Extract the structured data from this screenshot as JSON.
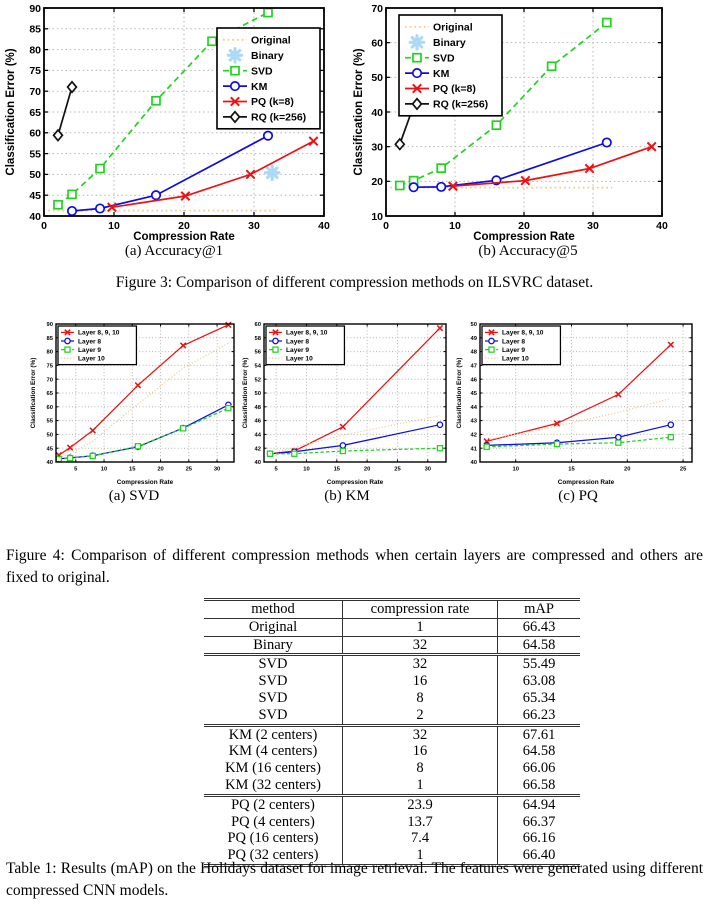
{
  "page": {
    "figure3_caption": "Figure 3: Comparison of different compression methods on ILSVRC dataset.",
    "figure4_caption": "Figure 4: Comparison of different compression methods when certain layers are compressed and others are fixed to original.",
    "table1_caption": "Table 1: Results (mAP) on the Holidays dataset for image retrieval. The features were generated using different compressed CNN models."
  },
  "chart_data": [
    {
      "id": "accuracy-at-1",
      "type": "line",
      "caption": "(a) Accuracy@1",
      "xlabel": "Compression Rate",
      "ylabel": "Classification Error (%)",
      "xlim": [
        0,
        40
      ],
      "ylim": [
        40,
        90
      ],
      "xticks": [
        0,
        10,
        20,
        30,
        40
      ],
      "yticks": [
        40,
        45,
        50,
        55,
        60,
        65,
        70,
        75,
        80,
        85,
        90
      ],
      "grid": true,
      "legend_position": "top-right",
      "series": [
        {
          "name": "Original",
          "color": "#f6c98c",
          "line": "dotted",
          "marker": "none",
          "x": [
            0.6,
            33.2
          ],
          "y": [
            41.3,
            41.3
          ]
        },
        {
          "name": "Binary",
          "color": "#a8d7f4",
          "line": "none",
          "marker": "asterisk",
          "x": [
            32.6
          ],
          "y": [
            50.4
          ]
        },
        {
          "name": "SVD",
          "color": "#1ed41e",
          "line": "dashed",
          "marker": "square",
          "x": [
            2,
            4,
            8,
            16,
            24,
            32
          ],
          "y": [
            42.7,
            45.2,
            51.4,
            67.7,
            82.0,
            88.9
          ]
        },
        {
          "name": "KM",
          "color": "#0d0de0",
          "line": "solid",
          "marker": "circle",
          "x": [
            4,
            8,
            16,
            32
          ],
          "y": [
            41.2,
            41.8,
            45.0,
            59.3
          ]
        },
        {
          "name": "PQ (k=8)",
          "color": "#ee1111",
          "line": "solid",
          "marker": "x",
          "x": [
            9.7,
            20.2,
            29.5,
            38.5
          ],
          "y": [
            42.1,
            44.8,
            50.0,
            58.0
          ]
        },
        {
          "name": "RQ (k=256)",
          "color": "#111111",
          "line": "solid",
          "marker": "diamond",
          "x": [
            2,
            4
          ],
          "y": [
            59.4,
            71.0
          ]
        }
      ]
    },
    {
      "id": "accuracy-at-5",
      "type": "line",
      "caption": "(b) Accuracy@5",
      "xlabel": "Compression Rate",
      "ylabel": "Classification Error (%)",
      "xlim": [
        0,
        40
      ],
      "ylim": [
        10,
        70
      ],
      "xticks": [
        0,
        10,
        20,
        30,
        40
      ],
      "yticks": [
        10,
        20,
        30,
        40,
        50,
        60,
        70
      ],
      "grid": true,
      "legend_position": "top-left",
      "series": [
        {
          "name": "Original",
          "color": "#f6c98c",
          "line": "dotted",
          "marker": "none",
          "x": [
            0.6,
            32.8
          ],
          "y": [
            18.2,
            18.2
          ]
        },
        {
          "name": "Binary",
          "color": "#a8d7f4",
          "line": "none",
          "marker": "asterisk",
          "x": [],
          "y": []
        },
        {
          "name": "SVD",
          "color": "#1ed41e",
          "line": "dashed",
          "marker": "square",
          "x": [
            2,
            4,
            8,
            16,
            24,
            32
          ],
          "y": [
            18.8,
            20.2,
            23.8,
            36.2,
            53.2,
            65.8
          ]
        },
        {
          "name": "KM",
          "color": "#0d0de0",
          "line": "solid",
          "marker": "circle",
          "x": [
            4,
            8,
            16,
            32
          ],
          "y": [
            18.3,
            18.4,
            20.3,
            31.2
          ]
        },
        {
          "name": "PQ (k=8)",
          "color": "#ee1111",
          "line": "solid",
          "marker": "x",
          "x": [
            9.7,
            20.2,
            29.5,
            38.5
          ],
          "y": [
            18.6,
            20.2,
            23.7,
            30.0
          ]
        },
        {
          "name": "RQ (k=256)",
          "color": "#111111",
          "line": "solid",
          "marker": "diamond",
          "x": [
            2,
            4
          ],
          "y": [
            30.7,
            41.8
          ]
        }
      ]
    },
    {
      "id": "layers-svd",
      "type": "line",
      "caption": "(a) SVD",
      "xlabel": "Compression Rate",
      "ylabel": "Classification Error (%)",
      "xlim": [
        1.5,
        33
      ],
      "ylim": [
        40,
        90
      ],
      "xticks": [
        5,
        10,
        15,
        20,
        25,
        30
      ],
      "yticks": [
        40,
        45,
        50,
        55,
        60,
        65,
        70,
        75,
        80,
        85,
        90
      ],
      "grid": true,
      "legend_position": "top-left",
      "series": [
        {
          "name": "Layer 8, 9, 10",
          "color": "#ee1111",
          "line": "solid",
          "marker": "x",
          "x": [
            2,
            4,
            8,
            16,
            24,
            32
          ],
          "y": [
            42.5,
            45.2,
            51.4,
            67.8,
            82.2,
            89.7
          ]
        },
        {
          "name": "Layer 8",
          "color": "#0d0de0",
          "line": "solid",
          "marker": "circle",
          "x": [
            2,
            4,
            8,
            16,
            24,
            32
          ],
          "y": [
            41.2,
            41.5,
            42.3,
            45.5,
            52.3,
            60.7
          ]
        },
        {
          "name": "Layer 9",
          "color": "#1ed41e",
          "line": "dashed",
          "marker": "square",
          "x": [
            2,
            4,
            8,
            16,
            24,
            32
          ],
          "y": [
            41.1,
            41.4,
            42.2,
            45.7,
            52.2,
            59.5
          ]
        },
        {
          "name": "Layer 10",
          "color": "#f6c98c",
          "line": "dotted",
          "marker": "none",
          "x": [
            2,
            4,
            8,
            16,
            24,
            32
          ],
          "y": [
            41.5,
            43.0,
            47.5,
            61.0,
            74.0,
            83.0
          ]
        }
      ]
    },
    {
      "id": "layers-km",
      "type": "line",
      "caption": "(b) KM",
      "xlabel": "Compression Rate",
      "ylabel": "Classification Error (%)",
      "xlim": [
        3,
        33
      ],
      "ylim": [
        40,
        60
      ],
      "xticks": [
        5,
        10,
        15,
        20,
        25,
        30
      ],
      "yticks": [
        40,
        42,
        44,
        46,
        48,
        50,
        52,
        54,
        56,
        58,
        60
      ],
      "grid": true,
      "legend_position": "top-left",
      "series": [
        {
          "name": "Layer 8, 9, 10",
          "color": "#ee1111",
          "line": "solid",
          "marker": "x",
          "x": [
            4,
            8,
            16,
            32
          ],
          "y": [
            41.2,
            41.6,
            45.1,
            59.4
          ]
        },
        {
          "name": "Layer 8",
          "color": "#0d0de0",
          "line": "solid",
          "marker": "circle",
          "x": [
            4,
            8,
            16,
            32
          ],
          "y": [
            41.2,
            41.5,
            42.4,
            45.4
          ]
        },
        {
          "name": "Layer 9",
          "color": "#1ed41e",
          "line": "dashed",
          "marker": "square",
          "x": [
            4,
            8,
            16,
            32
          ],
          "y": [
            41.2,
            41.2,
            41.6,
            42.0
          ]
        },
        {
          "name": "Layer 10",
          "color": "#f6c98c",
          "line": "dotted",
          "marker": "none",
          "x": [
            4,
            8,
            16,
            32
          ],
          "y": [
            41.2,
            42.1,
            43.9,
            46.7
          ]
        }
      ]
    },
    {
      "id": "layers-pq",
      "type": "line",
      "caption": "(c) PQ",
      "xlabel": "Compression Rate",
      "ylabel": "Classification Error (%)",
      "xlim": [
        6.8,
        25.8
      ],
      "ylim": [
        40,
        50
      ],
      "xticks": [
        10,
        15,
        20,
        25
      ],
      "yticks": [
        40,
        41,
        42,
        43,
        44,
        45,
        46,
        47,
        48,
        49,
        50
      ],
      "grid": true,
      "legend_position": "top-left",
      "series": [
        {
          "name": "Layer 8, 9, 10",
          "color": "#ee1111",
          "line": "solid",
          "marker": "x",
          "x": [
            7.4,
            13.7,
            19.2,
            23.9
          ],
          "y": [
            41.5,
            42.8,
            44.9,
            48.5
          ]
        },
        {
          "name": "Layer 8",
          "color": "#0d0de0",
          "line": "solid",
          "marker": "circle",
          "x": [
            7.4,
            13.7,
            19.2,
            23.9
          ],
          "y": [
            41.2,
            41.4,
            41.8,
            42.7
          ]
        },
        {
          "name": "Layer 9",
          "color": "#1ed41e",
          "line": "dashed",
          "marker": "square",
          "x": [
            7.4,
            13.7,
            19.2,
            23.9
          ],
          "y": [
            41.1,
            41.3,
            41.4,
            41.8
          ]
        },
        {
          "name": "Layer 10",
          "color": "#f6c98c",
          "line": "dotted",
          "marker": "none",
          "x": [
            7.4,
            13.7,
            19.2,
            23.9
          ],
          "y": [
            41.6,
            42.6,
            43.6,
            44.6
          ]
        }
      ]
    }
  ],
  "table": {
    "headers": [
      "method",
      "compression rate",
      "mAP"
    ],
    "groups": [
      [
        [
          "Original",
          "1",
          "66.43"
        ]
      ],
      [
        [
          "Binary",
          "32",
          "64.58"
        ]
      ],
      [
        [
          "SVD",
          "32",
          "55.49"
        ],
        [
          "SVD",
          "16",
          "63.08"
        ],
        [
          "SVD",
          "8",
          "65.34"
        ],
        [
          "SVD",
          "2",
          "66.23"
        ]
      ],
      [
        [
          "KM (2 centers)",
          "32",
          "67.61"
        ],
        [
          "KM (4 centers)",
          "16",
          "64.58"
        ],
        [
          "KM (16 centers)",
          "8",
          "66.06"
        ],
        [
          "KM (32 centers)",
          "1",
          "66.58"
        ]
      ],
      [
        [
          "PQ (2 centers)",
          "23.9",
          "64.94"
        ],
        [
          "PQ (4 centers)",
          "13.7",
          "66.37"
        ],
        [
          "PQ (16 centers)",
          "7.4",
          "66.16"
        ],
        [
          "PQ (32 centers)",
          "1",
          "66.40"
        ]
      ]
    ]
  }
}
